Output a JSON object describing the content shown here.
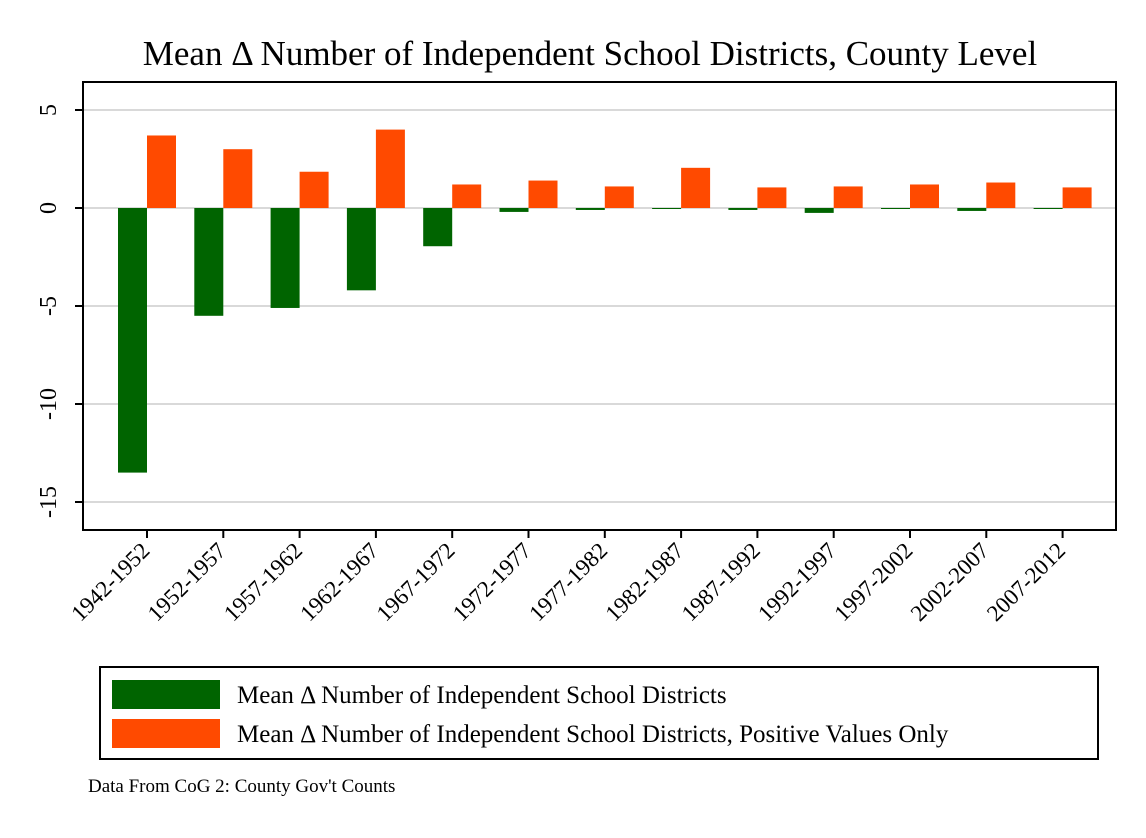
{
  "chart_data": {
    "type": "bar",
    "title": "Mean Δ Number of Independent School Districts, County Level",
    "xlabel": "",
    "ylabel": "",
    "ylim": [
      -16.5,
      6.5
    ],
    "yticks": [
      5,
      0,
      -5,
      -10,
      -15
    ],
    "grid": true,
    "legend_position": "bottom",
    "categories": [
      "1942-1952",
      "1952-1957",
      "1957-1962",
      "1962-1967",
      "1967-1972",
      "1972-1977",
      "1977-1982",
      "1982-1987",
      "1987-1992",
      "1992-1997",
      "1997-2002",
      "2002-2007",
      "2007-2012"
    ],
    "series": [
      {
        "name": "Mean Δ Number of Independent School Districts",
        "color": "#006400",
        "values": [
          -13.5,
          -5.5,
          -5.1,
          -4.2,
          -1.95,
          -0.2,
          -0.1,
          -0.05,
          -0.1,
          -0.25,
          -0.05,
          -0.15,
          -0.05
        ]
      },
      {
        "name": "Mean Δ Number of Independent School Districts, Positive Values Only",
        "color": "#ff4a00",
        "values": [
          3.7,
          3.0,
          1.85,
          4.0,
          1.2,
          1.4,
          1.1,
          2.05,
          1.05,
          1.1,
          1.2,
          1.3,
          1.05
        ]
      }
    ],
    "note": "Data From CoG 2: County Gov't Counts"
  }
}
